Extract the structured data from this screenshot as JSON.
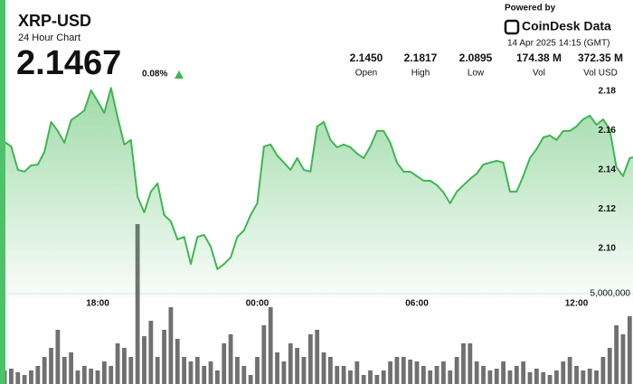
{
  "header": {
    "title": "XRP-USD",
    "subtitle": "24 Hour Chart",
    "price": "2.1467",
    "change": "0.08%",
    "stats": [
      {
        "value": "2.1450",
        "label": "Open"
      },
      {
        "value": "2.1817",
        "label": "High"
      },
      {
        "value": "2.0895",
        "label": "Low"
      },
      {
        "value": "174.38 M",
        "label": "Vol"
      },
      {
        "value": "372.35 M",
        "label": "Vol USD"
      }
    ],
    "powered_by": "Powered by",
    "brand": "CoinDesk Data",
    "timestamp": "14 Apr 2025 14:15 (GMT)"
  },
  "chart_data": {
    "type": "area",
    "categories": [
      null,
      null,
      null,
      null,
      null,
      null,
      null,
      null,
      null,
      null,
      null,
      null,
      null,
      null,
      null,
      "18:00",
      null,
      null,
      null,
      null,
      null,
      null,
      null,
      null,
      null,
      null,
      null,
      null,
      null,
      null,
      null,
      null,
      null,
      null,
      null,
      null,
      null,
      null,
      null,
      "00:00",
      null,
      null,
      null,
      null,
      null,
      null,
      null,
      null,
      null,
      null,
      null,
      null,
      null,
      null,
      null,
      null,
      null,
      null,
      null,
      null,
      null,
      null,
      null,
      "06:00",
      null,
      null,
      null,
      null,
      null,
      null,
      null,
      null,
      null,
      null,
      null,
      null,
      null,
      null,
      null,
      null,
      null,
      null,
      null,
      null,
      null,
      null,
      null,
      "12:00",
      null,
      null,
      null,
      null,
      null,
      null,
      null,
      null,
      null
    ],
    "series": [
      {
        "color": "#3fb651",
        "values": [
          2.1552,
          2.1542,
          2.1519,
          2.14,
          2.1391,
          2.1423,
          2.1427,
          2.1492,
          2.1644,
          2.1598,
          2.1538,
          2.1653,
          2.1676,
          2.1703,
          2.1805,
          2.1749,
          2.169,
          2.1817,
          2.1667,
          2.1529,
          2.1552,
          2.1262,
          2.1184,
          2.1289,
          2.1331,
          2.117,
          2.1138,
          2.1046,
          2.1059,
          2.0921,
          2.1059,
          2.1069,
          2.1009,
          2.0895,
          2.0921,
          2.0954,
          2.1059,
          2.1092,
          2.117,
          2.123,
          2.1519,
          2.1529,
          2.1473,
          2.1437,
          2.14,
          2.146,
          2.14,
          2.1391,
          2.1621,
          2.1644,
          2.1552,
          2.1515,
          2.1529,
          2.1515,
          2.1483,
          2.146,
          2.1519,
          2.1598,
          2.1598,
          2.1538,
          2.1437,
          2.1391,
          2.1391,
          2.1368,
          2.1345,
          2.1345,
          2.1322,
          2.1285,
          2.123,
          2.1289,
          2.1322,
          2.1354,
          2.1381,
          2.1427,
          2.1437,
          2.1446,
          2.1437,
          2.1289,
          2.1289,
          2.1368,
          2.146,
          2.1506,
          2.1565,
          2.1575,
          2.1552,
          2.1598,
          2.1598,
          2.1621,
          2.1657,
          2.1676,
          2.163,
          2.1657,
          2.1607,
          2.1414,
          2.1368,
          2.146,
          2.1467
        ]
      },
      {
        "type": "bar",
        "axis": "y2",
        "color": "#707070",
        "values": [
          250000,
          750000,
          850000,
          650000,
          500000,
          750000,
          1000000,
          1500000,
          2000000,
          3000000,
          1500000,
          1750000,
          750000,
          1000000,
          850000,
          750000,
          1250000,
          1000000,
          2250000,
          2000000,
          1500000,
          8850000,
          2650000,
          3500000,
          1500000,
          3000000,
          4250000,
          2500000,
          1500000,
          1250000,
          1500000,
          1000000,
          1250000,
          750000,
          2250000,
          2750000,
          1500000,
          1000000,
          500000,
          1500000,
          3250000,
          4250000,
          1750000,
          1250000,
          2250000,
          2000000,
          1500000,
          2750000,
          3000000,
          1750000,
          1500000,
          1000000,
          1000000,
          750000,
          1250000,
          500000,
          750000,
          500000,
          750000,
          1250000,
          1500000,
          1500000,
          1350000,
          1250000,
          1000000,
          750000,
          1000000,
          1250000,
          750000,
          1500000,
          2250000,
          2250000,
          1250000,
          1000000,
          750000,
          850000,
          1250000,
          750000,
          1000000,
          1250000,
          650000,
          850000,
          650000,
          500000,
          750000,
          1250000,
          1500000,
          1000000,
          750000,
          850000,
          750000,
          1500000,
          2000000,
          3250000,
          2750000,
          3750000,
          3250000
        ]
      }
    ],
    "ylim": [
      2.08,
      2.185
    ],
    "yticks": [
      {
        "value": 2.1,
        "label": "2.10"
      },
      2.12,
      2.14,
      2.16,
      2.18
    ],
    "y2lim": [
      0,
      10000000
    ],
    "y2ticks": [
      {
        "value": 5000000,
        "label": "5,000,000"
      }
    ]
  }
}
